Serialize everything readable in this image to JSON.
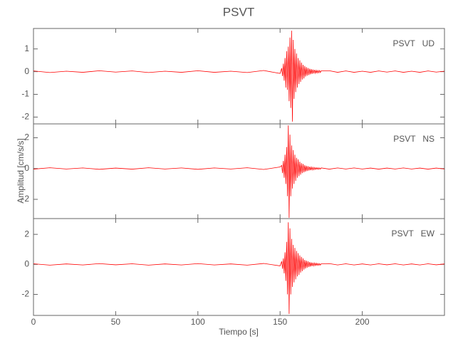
{
  "title": "PSVT",
  "xlabel": "Tiempo [s]",
  "ylabel": "Amplitud [cm/s/s]",
  "chart_data": [
    {
      "type": "line",
      "annotation": "PSVT   UD",
      "color": "#ff0000",
      "xlim": [
        0,
        250
      ],
      "ylim": [
        -2.3,
        1.9
      ],
      "yticks": [
        -2,
        -1,
        0,
        1
      ],
      "x": [
        0,
        10,
        20,
        30,
        40,
        50,
        60,
        70,
        80,
        90,
        100,
        110,
        120,
        130,
        140,
        150,
        151,
        151.5,
        152,
        152.5,
        153,
        153.5,
        154,
        154.5,
        155,
        155.5,
        156,
        156.5,
        157,
        157.5,
        158,
        158.5,
        159,
        159.5,
        160,
        160.5,
        161,
        161.5,
        162,
        162.5,
        163,
        163.5,
        164,
        164.5,
        165,
        165.5,
        166,
        166.5,
        167,
        167.5,
        168,
        168.5,
        169,
        169.5,
        170,
        170.5,
        171,
        171.5,
        172,
        172.5,
        173,
        173.5,
        174,
        174.5,
        175,
        180,
        185,
        190,
        195,
        200,
        205,
        210,
        215,
        220,
        225,
        230,
        235,
        240,
        245,
        250
      ],
      "values": [
        0.03,
        -0.04,
        0.02,
        -0.03,
        0.04,
        -0.02,
        0.03,
        -0.04,
        0.02,
        -0.03,
        0.04,
        -0.03,
        0.02,
        -0.04,
        0.05,
        -0.08,
        0.15,
        -0.2,
        0.35,
        -0.4,
        0.6,
        -0.7,
        0.9,
        -0.8,
        1.1,
        -1.3,
        1.5,
        -1.6,
        1.8,
        -2.2,
        1.4,
        -1.2,
        1.0,
        -0.9,
        0.8,
        -0.7,
        0.6,
        -0.55,
        0.5,
        -0.45,
        0.4,
        -0.35,
        0.3,
        -0.3,
        0.25,
        -0.22,
        0.2,
        -0.18,
        0.16,
        -0.15,
        0.13,
        -0.12,
        0.11,
        -0.1,
        0.09,
        -0.08,
        0.08,
        -0.07,
        0.06,
        -0.06,
        0.05,
        -0.05,
        0.05,
        -0.04,
        0.04,
        0.04,
        -0.03,
        0.03,
        -0.03,
        0.02,
        -0.03,
        0.03,
        -0.02,
        0.03,
        -0.03,
        0.02,
        -0.03,
        0.03,
        -0.02,
        0.02
      ]
    },
    {
      "type": "line",
      "annotation": "PSVT   NS",
      "color": "#ff0000",
      "xlim": [
        0,
        250
      ],
      "ylim": [
        -3.25,
        2.9
      ],
      "yticks": [
        -2,
        0,
        2
      ],
      "x": [
        0,
        10,
        20,
        30,
        40,
        50,
        60,
        70,
        80,
        90,
        100,
        110,
        120,
        130,
        140,
        150,
        151,
        151.5,
        152,
        152.5,
        153,
        153.5,
        154,
        154.5,
        155,
        155.5,
        156,
        156.5,
        157,
        157.5,
        158,
        158.5,
        159,
        159.5,
        160,
        160.5,
        161,
        161.5,
        162,
        162.5,
        163,
        163.5,
        164,
        164.5,
        165,
        165.5,
        166,
        166.5,
        167,
        167.5,
        168,
        168.5,
        169,
        169.5,
        170,
        170.5,
        171,
        171.5,
        172,
        172.5,
        173,
        173.5,
        174,
        174.5,
        175,
        180,
        185,
        190,
        195,
        200,
        205,
        210,
        215,
        220,
        225,
        230,
        235,
        240,
        245,
        250
      ],
      "values": [
        -0.04,
        0.05,
        -0.03,
        0.04,
        -0.05,
        0.03,
        -0.04,
        0.05,
        -0.03,
        0.04,
        -0.05,
        0.04,
        -0.03,
        0.05,
        -0.06,
        0.1,
        0.2,
        -0.3,
        0.5,
        -0.6,
        0.9,
        -1.0,
        1.4,
        -1.8,
        2.8,
        -3.2,
        2.2,
        -1.8,
        1.5,
        -1.3,
        1.2,
        -1.0,
        0.9,
        -0.8,
        0.7,
        -0.6,
        0.6,
        -0.5,
        0.45,
        -0.4,
        0.35,
        -0.3,
        0.3,
        -0.25,
        0.22,
        -0.2,
        0.18,
        -0.16,
        0.15,
        -0.13,
        0.12,
        -0.11,
        0.1,
        -0.09,
        0.08,
        -0.08,
        0.07,
        -0.06,
        0.06,
        -0.05,
        0.05,
        -0.05,
        0.04,
        -0.04,
        0.04,
        -0.04,
        0.04,
        -0.03,
        0.04,
        -0.03,
        0.03,
        -0.04,
        0.03,
        -0.03,
        0.04,
        -0.03,
        0.03,
        -0.04,
        0.03,
        -0.03
      ]
    },
    {
      "type": "line",
      "annotation": "PSVT   EW",
      "color": "#ff0000",
      "xlim": [
        0,
        250
      ],
      "ylim": [
        -3.4,
        3.05
      ],
      "yticks": [
        -2,
        0,
        2
      ],
      "xticks": [
        0,
        50,
        100,
        150,
        200
      ],
      "x": [
        0,
        10,
        20,
        30,
        40,
        50,
        60,
        70,
        80,
        90,
        100,
        110,
        120,
        130,
        140,
        150,
        151,
        151.5,
        152,
        152.5,
        153,
        153.5,
        154,
        154.5,
        155,
        155.5,
        156,
        156.5,
        157,
        157.5,
        158,
        158.5,
        159,
        159.5,
        160,
        160.5,
        161,
        161.5,
        162,
        162.5,
        163,
        163.5,
        164,
        164.5,
        165,
        165.5,
        166,
        166.5,
        167,
        167.5,
        168,
        168.5,
        169,
        169.5,
        170,
        170.5,
        171,
        171.5,
        172,
        172.5,
        173,
        173.5,
        174,
        174.5,
        175,
        180,
        185,
        190,
        195,
        200,
        205,
        210,
        215,
        220,
        225,
        230,
        235,
        240,
        245,
        250
      ],
      "values": [
        0.04,
        -0.05,
        0.03,
        -0.04,
        0.05,
        -0.03,
        0.04,
        -0.05,
        0.03,
        -0.04,
        0.05,
        -0.04,
        0.03,
        -0.05,
        0.06,
        -0.1,
        0.2,
        -0.3,
        0.4,
        -0.6,
        0.8,
        -1.1,
        1.5,
        -2.0,
        2.8,
        -3.3,
        2.4,
        -2.0,
        1.7,
        -1.5,
        1.3,
        -1.2,
        1.1,
        -1.0,
        0.9,
        -0.8,
        0.75,
        -0.7,
        0.6,
        -0.55,
        0.5,
        -0.45,
        0.4,
        -0.35,
        0.3,
        -0.28,
        0.25,
        -0.22,
        0.2,
        -0.18,
        0.16,
        -0.15,
        0.13,
        -0.12,
        0.11,
        -0.1,
        0.09,
        -0.08,
        0.08,
        -0.07,
        0.06,
        -0.06,
        0.05,
        -0.05,
        0.04,
        0.05,
        -0.04,
        0.04,
        -0.04,
        0.03,
        -0.04,
        0.04,
        -0.03,
        0.04,
        -0.04,
        0.03,
        -0.04,
        0.04,
        -0.03,
        0.03
      ]
    }
  ]
}
